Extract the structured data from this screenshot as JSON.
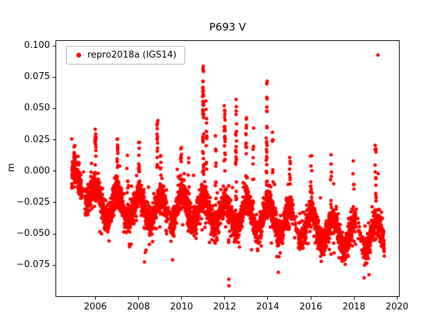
{
  "chart_data": {
    "type": "scatter",
    "title": "P693 V",
    "xlabel": "",
    "ylabel": "m",
    "legend": {
      "label": "repro2018a (IGS14)",
      "position": "upper left"
    },
    "marker": {
      "color": "#ff0000",
      "style": "dot"
    },
    "grid": false,
    "xlim": [
      2004.15,
      2020.12
    ],
    "ylim": [
      -0.1003,
      0.1045
    ],
    "xticks": [
      2006,
      2008,
      2010,
      2012,
      2014,
      2016,
      2018,
      2020
    ],
    "xtick_labels": [
      "2006",
      "2008",
      "2010",
      "2012",
      "2014",
      "2016",
      "2018",
      "2020"
    ],
    "yticks": [
      0.1,
      0.075,
      0.05,
      0.025,
      0.0,
      -0.025,
      -0.05,
      -0.075
    ],
    "ytick_labels": [
      "0.100",
      "0.075",
      "0.050",
      "0.025",
      "0.000",
      "−0.025",
      "−0.050",
      "−0.075"
    ],
    "description": "Daily vertical (V) position residuals in meters for GPS station P693, repro2018a solution in IGS14 frame. Dense red scatter from late 2004 to 2019 with annual oscillation (~±0.011 m), slow downward trend from ~0.000 m to ~-0.050 m, and sharp positive winter spikes (max 0.095 m in 2019; 0.083 m in 2011) plus a negative excursion to -0.091 m in early 2012.",
    "synthesis": {
      "seed": 7,
      "t_start": 2004.87,
      "t_end": 2019.38,
      "n_points": 4200,
      "noise_sd": 0.0055,
      "outlier_rate": 0.07,
      "outlier_scale": 2.4,
      "seasonal_amplitude": 0.011,
      "seasonal_phase": 0.0,
      "trend_knots": [
        [
          2004.87,
          -0.012
        ],
        [
          2005.4,
          -0.008
        ],
        [
          2006.0,
          -0.023
        ],
        [
          2006.5,
          -0.026
        ],
        [
          2007.0,
          -0.028
        ],
        [
          2008.0,
          -0.028
        ],
        [
          2009.0,
          -0.031
        ],
        [
          2010.0,
          -0.028
        ],
        [
          2011.0,
          -0.031
        ],
        [
          2012.0,
          -0.034
        ],
        [
          2013.0,
          -0.035
        ],
        [
          2014.0,
          -0.036
        ],
        [
          2015.0,
          -0.04
        ],
        [
          2016.0,
          -0.044
        ],
        [
          2017.0,
          -0.048
        ],
        [
          2018.0,
          -0.051
        ],
        [
          2019.38,
          -0.05
        ]
      ],
      "gaps": [
        [
          2005.33,
          2005.5
        ],
        [
          2009.3,
          2009.45
        ],
        [
          2013.45,
          2013.6
        ],
        [
          2015.15,
          2015.4
        ],
        [
          2018.05,
          2018.4
        ]
      ],
      "gap_keep_prob": 0.15,
      "spike_width": 0.05,
      "spikes": [
        [
          2005.0,
          0.021,
          10
        ],
        [
          2005.97,
          0.034,
          18
        ],
        [
          2007.0,
          0.027,
          14
        ],
        [
          2007.45,
          0.016,
          6
        ],
        [
          2008.0,
          0.022,
          12
        ],
        [
          2008.85,
          0.038,
          16
        ],
        [
          2009.0,
          0.014,
          8
        ],
        [
          2009.95,
          0.018,
          10
        ],
        [
          2010.3,
          0.012,
          6
        ],
        [
          2010.97,
          0.083,
          40
        ],
        [
          2011.12,
          0.057,
          16
        ],
        [
          2011.55,
          0.03,
          10
        ],
        [
          2011.97,
          0.05,
          22
        ],
        [
          2012.15,
          -0.091,
          6
        ],
        [
          2012.5,
          0.056,
          24
        ],
        [
          2012.97,
          0.042,
          16
        ],
        [
          2013.3,
          0.03,
          8
        ],
        [
          2013.5,
          -0.062,
          5
        ],
        [
          2013.92,
          0.071,
          28
        ],
        [
          2014.2,
          0.03,
          8
        ],
        [
          2015.0,
          0.01,
          8
        ],
        [
          2015.95,
          0.013,
          8
        ],
        [
          2016.0,
          0.012,
          8
        ],
        [
          2016.5,
          -0.065,
          5
        ],
        [
          2016.9,
          0.01,
          8
        ],
        [
          2017.95,
          0.006,
          5
        ],
        [
          2018.97,
          0.021,
          12
        ],
        [
          2019.1,
          0.095,
          2
        ]
      ]
    }
  }
}
